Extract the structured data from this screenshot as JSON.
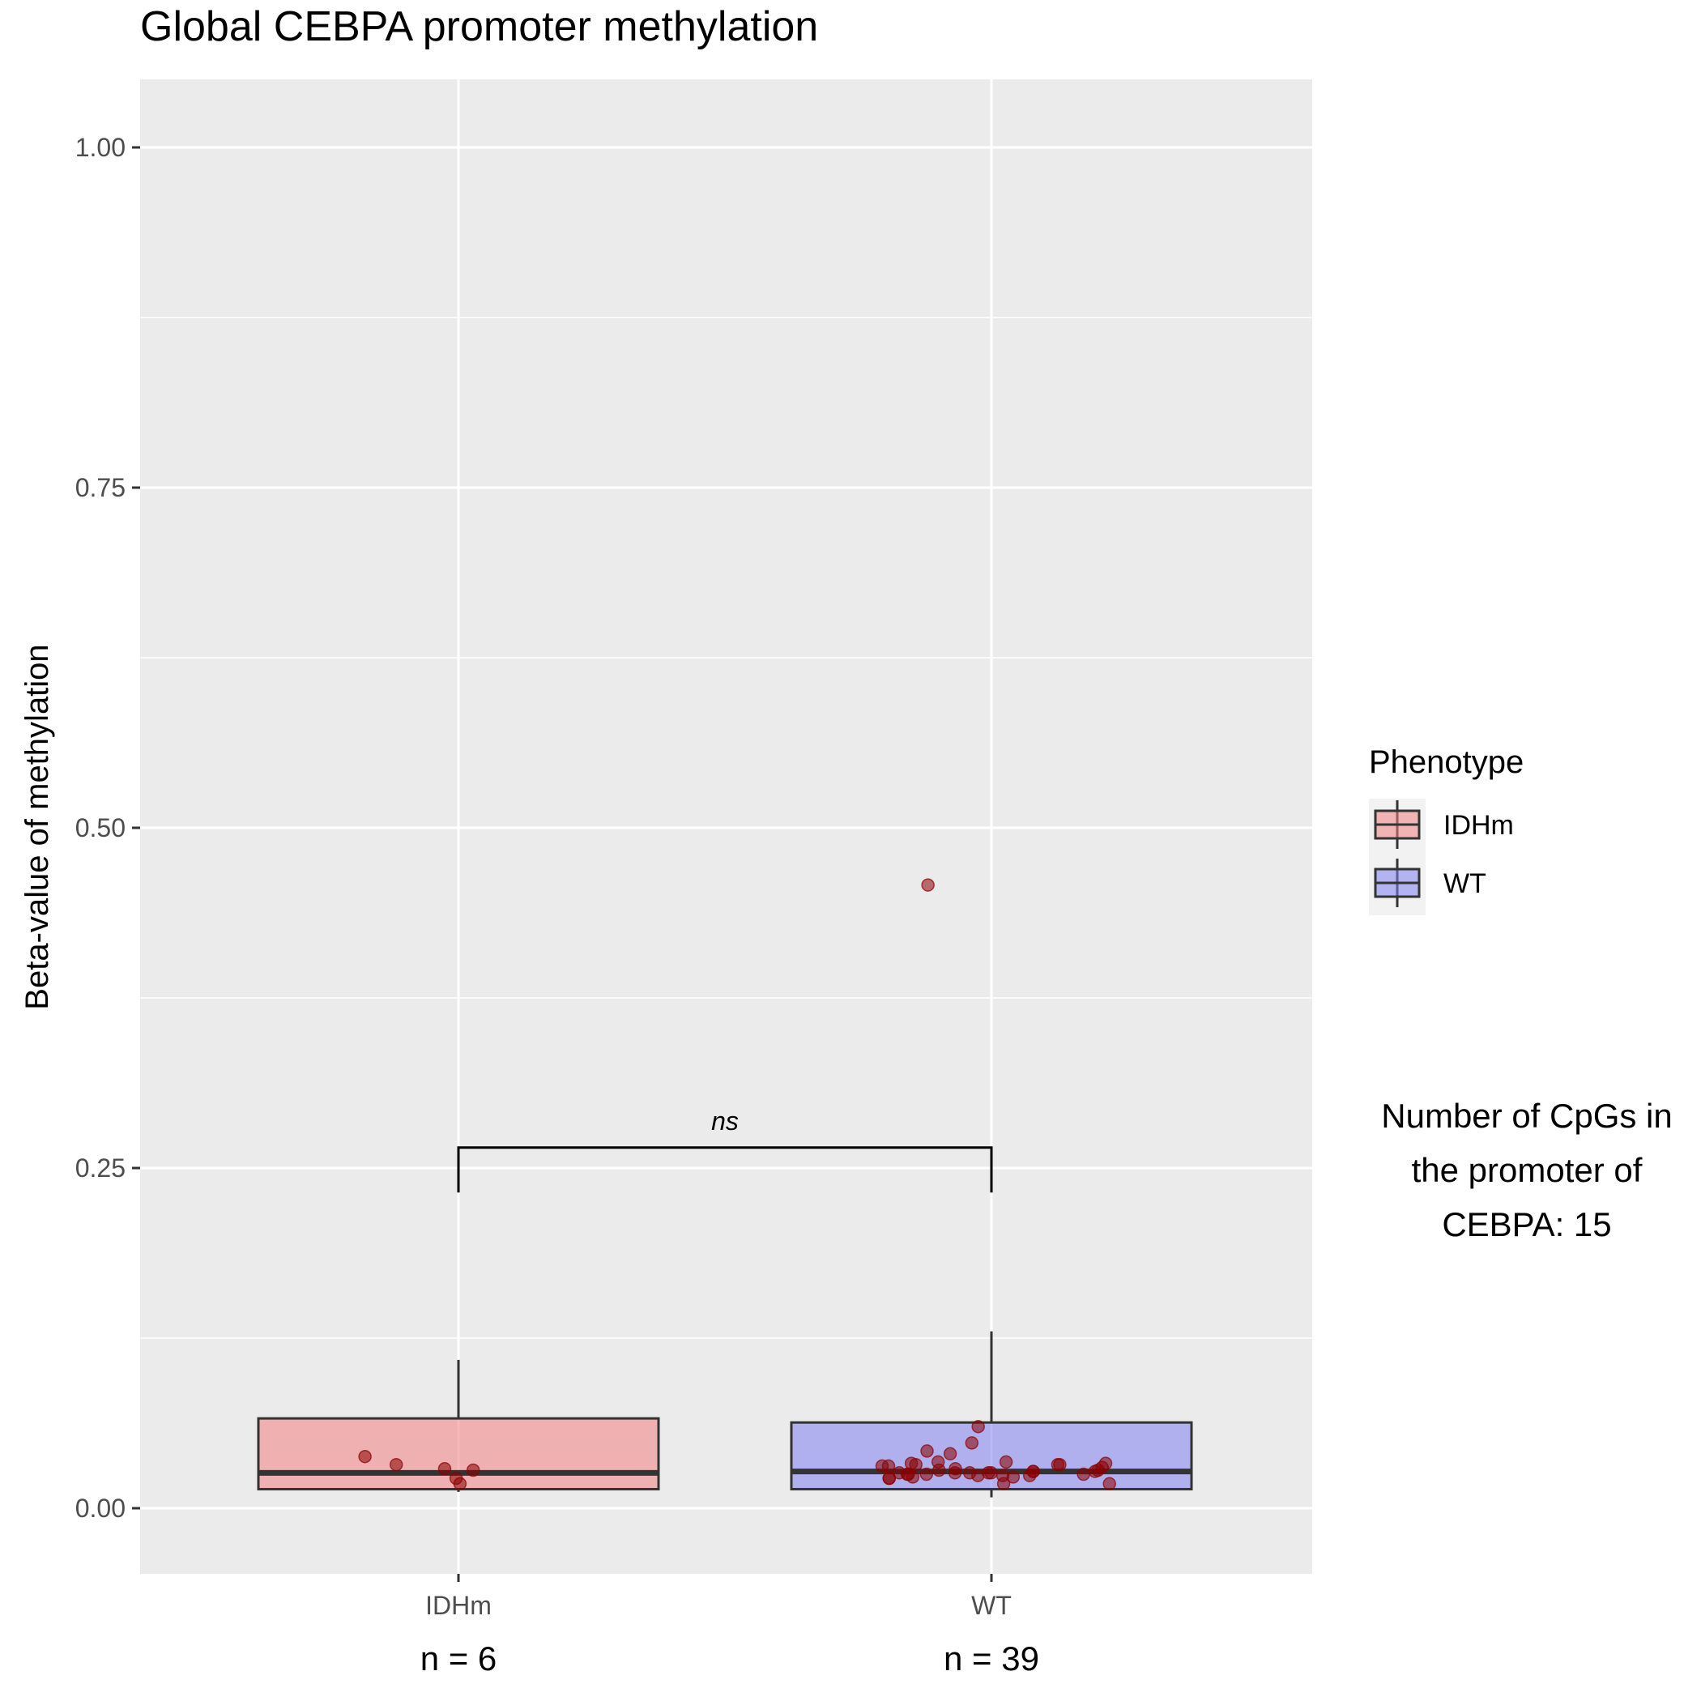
{
  "chart_data": {
    "type": "box",
    "title": "Global CEBPA promoter methylation",
    "xlabel": "",
    "ylabel": "Beta-value of methylation",
    "ylim": [
      -0.05,
      1.05
    ],
    "yticks": [
      "0.00",
      "0.25",
      "0.50",
      "0.75",
      "1.00"
    ],
    "ytick_values": [
      0,
      0.25,
      0.5,
      0.75,
      1.0
    ],
    "grid": true,
    "categories": [
      "IDHm",
      "WT"
    ],
    "sample_sizes": [
      "n = 6",
      "n = 39"
    ],
    "boxes": [
      {
        "name": "IDHm",
        "fill": "#f08080",
        "q1": 0.014,
        "median": 0.026,
        "q3": 0.066,
        "whisker_low": 0.012,
        "whisker_high": 0.109
      },
      {
        "name": "WT",
        "fill": "#8080f0",
        "q1": 0.014,
        "median": 0.027,
        "q3": 0.063,
        "whisker_low": 0.008,
        "whisker_high": 0.13
      }
    ],
    "points": [
      {
        "group": "IDHm",
        "values": [
          0.022,
          0.028,
          0.038,
          0.032,
          0.029,
          0.018
        ]
      },
      {
        "group": "WT",
        "values": [
          0.022,
          0.025,
          0.023,
          0.026,
          0.028,
          0.032,
          0.024,
          0.031,
          0.026,
          0.042,
          0.027,
          0.025,
          0.034,
          0.026,
          0.023,
          0.031,
          0.028,
          0.033,
          0.026,
          0.024,
          0.03,
          0.032,
          0.048,
          0.018,
          0.027,
          0.034,
          0.033,
          0.018,
          0.06,
          0.025,
          0.024,
          0.04,
          0.025,
          0.032,
          0.029,
          0.026,
          0.022,
          0.027,
          0.458
        ]
      }
    ],
    "point_color": "#8b0000",
    "legend": {
      "title": "Phenotype",
      "position": "right",
      "entries": [
        {
          "label": "IDHm",
          "color": "#f08080"
        },
        {
          "label": "WT",
          "color": "#8080f0"
        }
      ]
    },
    "significance": {
      "label": "ns",
      "between": [
        "IDHm",
        "WT"
      ],
      "y_bar": 0.265,
      "y_tip": 0.232
    },
    "note": [
      "Number of CpGs in",
      "the promoter of",
      "CEBPA: 15"
    ]
  }
}
